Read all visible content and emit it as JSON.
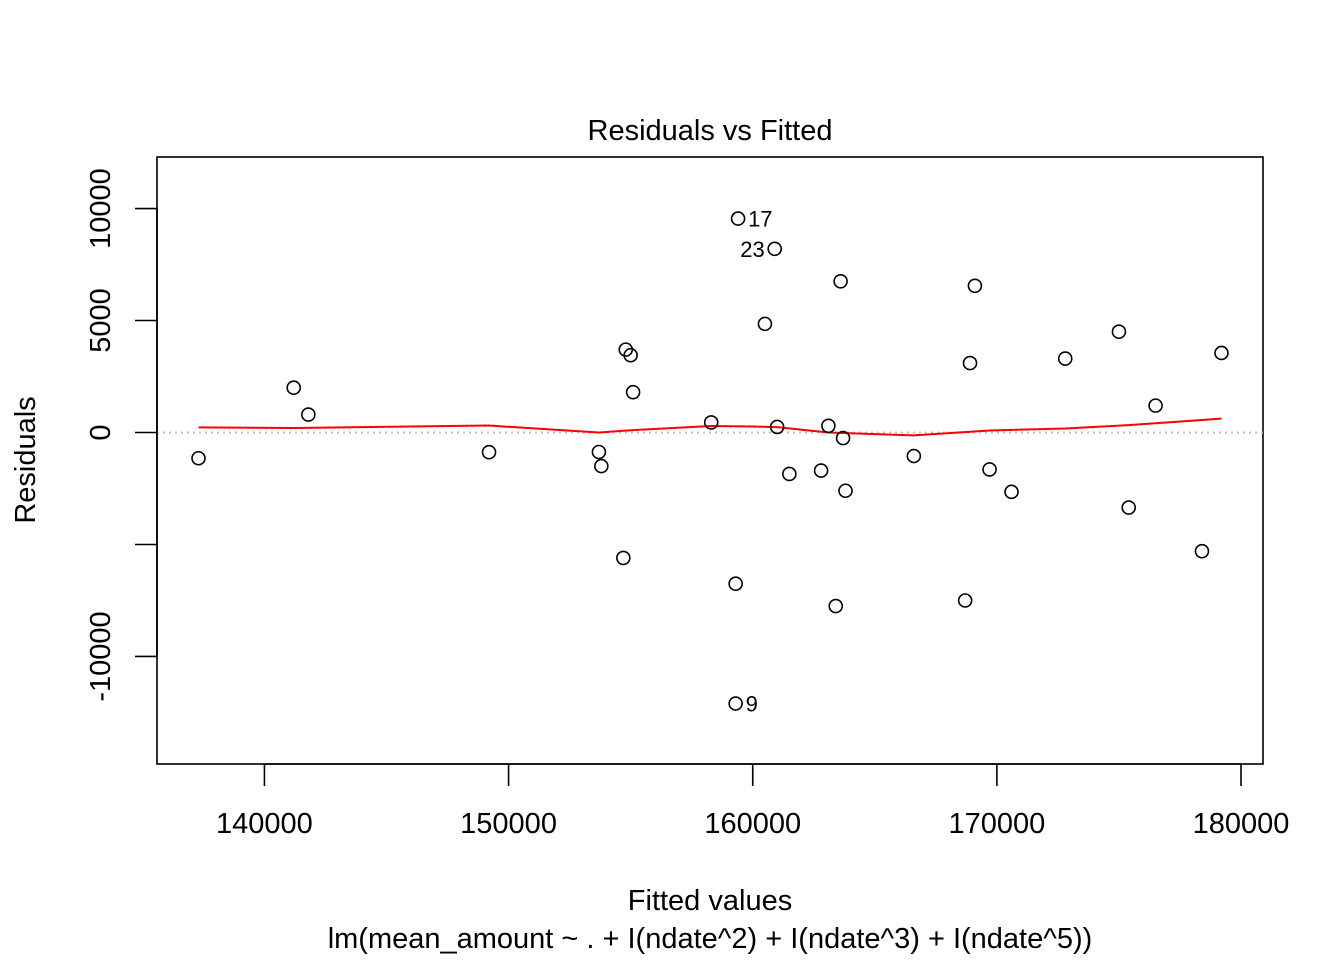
{
  "chart_data": {
    "type": "scatter",
    "title": "Residuals vs Fitted",
    "xlabel": "Fitted values",
    "subtitle": "lm(mean_amount ~ . + I(ndate^2) + I(ndate^3) + I(ndate^5))",
    "ylabel": "Residuals",
    "xlim": [
      135600,
      180900
    ],
    "ylim": [
      -14800,
      12300
    ],
    "x_ticks": [
      140000,
      150000,
      160000,
      170000,
      180000
    ],
    "x_tick_labels": [
      "140000",
      "150000",
      "160000",
      "170000",
      "180000"
    ],
    "y_ticks": [
      -10000,
      -5000,
      0,
      5000,
      10000
    ],
    "y_tick_labels": [
      "-10000",
      "",
      "0",
      "5000",
      "10000"
    ],
    "grid": false,
    "reference_line": {
      "y": 0,
      "style": "dotted",
      "color": "#bebebe"
    },
    "points": [
      {
        "x": 137300,
        "y": -1150
      },
      {
        "x": 141200,
        "y": 2000
      },
      {
        "x": 141800,
        "y": 800
      },
      {
        "x": 149200,
        "y": -880
      },
      {
        "x": 153700,
        "y": -870
      },
      {
        "x": 153800,
        "y": -1500
      },
      {
        "x": 154700,
        "y": -5600
      },
      {
        "x": 154800,
        "y": 3700
      },
      {
        "x": 155000,
        "y": 3450
      },
      {
        "x": 155100,
        "y": 1800
      },
      {
        "x": 158300,
        "y": 450
      },
      {
        "x": 159300,
        "y": -12100,
        "label": "9"
      },
      {
        "x": 159300,
        "y": -6750
      },
      {
        "x": 159400,
        "y": 9550,
        "label": "17"
      },
      {
        "x": 160500,
        "y": 4850
      },
      {
        "x": 160900,
        "y": 8200,
        "label": "23"
      },
      {
        "x": 161000,
        "y": 250
      },
      {
        "x": 161500,
        "y": -1850
      },
      {
        "x": 162800,
        "y": -1700
      },
      {
        "x": 163100,
        "y": 300
      },
      {
        "x": 163400,
        "y": -7750
      },
      {
        "x": 163600,
        "y": 6750
      },
      {
        "x": 163700,
        "y": -250
      },
      {
        "x": 163800,
        "y": -2600
      },
      {
        "x": 166600,
        "y": -1050
      },
      {
        "x": 168700,
        "y": -7500
      },
      {
        "x": 168900,
        "y": 3100
      },
      {
        "x": 169100,
        "y": 6550
      },
      {
        "x": 169700,
        "y": -1650
      },
      {
        "x": 170600,
        "y": -2650
      },
      {
        "x": 172800,
        "y": 3300
      },
      {
        "x": 175000,
        "y": 4500
      },
      {
        "x": 175400,
        "y": -3350
      },
      {
        "x": 176500,
        "y": 1200
      },
      {
        "x": 178400,
        "y": -5300
      },
      {
        "x": 179200,
        "y": 3550
      }
    ],
    "smooth_line": {
      "color": "#ff0000",
      "x": [
        137300,
        141200,
        149200,
        153700,
        155000,
        158300,
        160000,
        161000,
        163100,
        166600,
        169700,
        172800,
        175400,
        179200
      ],
      "y": [
        230,
        200,
        310,
        0,
        100,
        290,
        270,
        240,
        0,
        -130,
        90,
        180,
        330,
        620
      ]
    }
  }
}
